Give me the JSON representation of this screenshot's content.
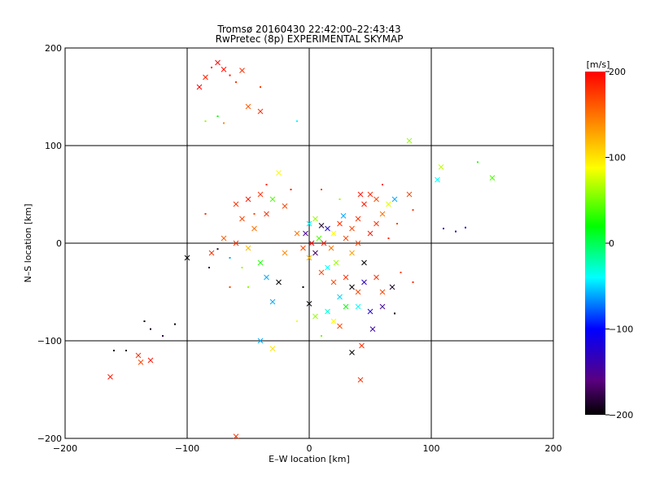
{
  "chart_data": {
    "type": "scatter",
    "title": "Tromsø 20160430 22:42:00–22:43:43",
    "subtitle": "RwPretec (8p) EXPERIMENTAL SKYMAP",
    "xlabel": "E–W location [km]",
    "ylabel": "N–S location [km]",
    "xlim": [
      -200,
      200
    ],
    "ylim": [
      -200,
      200
    ],
    "xticks": [
      "−200",
      "−100",
      "0",
      "100",
      "200"
    ],
    "yticks": [
      "−200",
      "−100",
      "0",
      "100",
      "200"
    ],
    "grid": true,
    "colorbar": {
      "label": "[m/s]",
      "range": [
        -200,
        200
      ],
      "ticks": [
        "200",
        "100",
        "0",
        "−100",
        "−200"
      ],
      "colormap": "black-purple-blue-cyan-green-yellow-red"
    },
    "marker_styles": [
      "x",
      "dot"
    ],
    "series": [
      {
        "x": -75,
        "y": 185,
        "v": 200,
        "m": "x"
      },
      {
        "x": -80,
        "y": 180,
        "v": 190,
        "m": "dot"
      },
      {
        "x": -70,
        "y": 178,
        "v": 195,
        "m": "x"
      },
      {
        "x": -55,
        "y": 177,
        "v": 180,
        "m": "x"
      },
      {
        "x": -65,
        "y": 172,
        "v": 190,
        "m": "dot"
      },
      {
        "x": -85,
        "y": 170,
        "v": 185,
        "m": "x"
      },
      {
        "x": -60,
        "y": 165,
        "v": 175,
        "m": "dot"
      },
      {
        "x": -40,
        "y": 160,
        "v": 170,
        "m": "dot"
      },
      {
        "x": -90,
        "y": 160,
        "v": 200,
        "m": "x"
      },
      {
        "x": -50,
        "y": 140,
        "v": 160,
        "m": "x"
      },
      {
        "x": -40,
        "y": 135,
        "v": 180,
        "m": "x"
      },
      {
        "x": -75,
        "y": 130,
        "v": 20,
        "m": "dot"
      },
      {
        "x": -85,
        "y": 125,
        "v": 60,
        "m": "dot"
      },
      {
        "x": -70,
        "y": 123,
        "v": 140,
        "m": "dot"
      },
      {
        "x": -10,
        "y": 125,
        "v": -40,
        "m": "dot"
      },
      {
        "x": 82,
        "y": 105,
        "v": 60,
        "m": "x"
      },
      {
        "x": 108,
        "y": 78,
        "v": 70,
        "m": "x"
      },
      {
        "x": 105,
        "y": 65,
        "v": -40,
        "m": "x"
      },
      {
        "x": 150,
        "y": 67,
        "v": 40,
        "m": "x"
      },
      {
        "x": 138,
        "y": 83,
        "v": 30,
        "m": "dot"
      },
      {
        "x": 110,
        "y": 15,
        "v": -150,
        "m": "dot"
      },
      {
        "x": 120,
        "y": 12,
        "v": -130,
        "m": "dot"
      },
      {
        "x": 128,
        "y": 16,
        "v": -120,
        "m": "dot"
      },
      {
        "x": 82,
        "y": 50,
        "v": 170,
        "m": "x"
      },
      {
        "x": 85,
        "y": 34,
        "v": 180,
        "m": "dot"
      },
      {
        "x": -100,
        "y": -15,
        "v": -200,
        "m": "x"
      },
      {
        "x": -80,
        "y": -10,
        "v": 180,
        "m": "x"
      },
      {
        "x": -75,
        "y": -6,
        "v": -190,
        "m": "dot"
      },
      {
        "x": -70,
        "y": 5,
        "v": 160,
        "m": "x"
      },
      {
        "x": -82,
        "y": -25,
        "v": -180,
        "m": "dot"
      },
      {
        "x": -60,
        "y": 40,
        "v": 180,
        "m": "x"
      },
      {
        "x": -50,
        "y": 45,
        "v": 190,
        "m": "x"
      },
      {
        "x": -40,
        "y": 50,
        "v": 175,
        "m": "x"
      },
      {
        "x": -30,
        "y": 45,
        "v": 40,
        "m": "x"
      },
      {
        "x": -25,
        "y": 72,
        "v": 90,
        "m": "x"
      },
      {
        "x": -20,
        "y": 38,
        "v": 170,
        "m": "x"
      },
      {
        "x": -35,
        "y": 30,
        "v": 180,
        "m": "x"
      },
      {
        "x": -55,
        "y": 25,
        "v": 170,
        "m": "x"
      },
      {
        "x": -45,
        "y": 15,
        "v": 150,
        "m": "x"
      },
      {
        "x": -60,
        "y": 0,
        "v": 180,
        "m": "x"
      },
      {
        "x": -50,
        "y": -5,
        "v": 120,
        "m": "x"
      },
      {
        "x": -40,
        "y": -20,
        "v": 30,
        "m": "x"
      },
      {
        "x": -35,
        "y": -35,
        "v": -60,
        "m": "x"
      },
      {
        "x": -50,
        "y": -45,
        "v": 60,
        "m": "dot"
      },
      {
        "x": -30,
        "y": -60,
        "v": -60,
        "m": "x"
      },
      {
        "x": -25,
        "y": -40,
        "v": -200,
        "m": "x"
      },
      {
        "x": -20,
        "y": -10,
        "v": 140,
        "m": "x"
      },
      {
        "x": -10,
        "y": 10,
        "v": 150,
        "m": "x"
      },
      {
        "x": -5,
        "y": -5,
        "v": 170,
        "m": "x"
      },
      {
        "x": 0,
        "y": 20,
        "v": -40,
        "m": "x"
      },
      {
        "x": 5,
        "y": 25,
        "v": 60,
        "m": "x"
      },
      {
        "x": 10,
        "y": 18,
        "v": -190,
        "m": "x"
      },
      {
        "x": 15,
        "y": 15,
        "v": -120,
        "m": "x"
      },
      {
        "x": 8,
        "y": 5,
        "v": 40,
        "m": "x"
      },
      {
        "x": 12,
        "y": 0,
        "v": 190,
        "m": "x"
      },
      {
        "x": 18,
        "y": -5,
        "v": 150,
        "m": "x"
      },
      {
        "x": 5,
        "y": -10,
        "v": -170,
        "m": "x"
      },
      {
        "x": 20,
        "y": 10,
        "v": 90,
        "m": "x"
      },
      {
        "x": 25,
        "y": 20,
        "v": 180,
        "m": "x"
      },
      {
        "x": 30,
        "y": 5,
        "v": 170,
        "m": "x"
      },
      {
        "x": 22,
        "y": -20,
        "v": 60,
        "m": "x"
      },
      {
        "x": 15,
        "y": -25,
        "v": -40,
        "m": "x"
      },
      {
        "x": 10,
        "y": -30,
        "v": 170,
        "m": "x"
      },
      {
        "x": 0,
        "y": -15,
        "v": 120,
        "m": "x"
      },
      {
        "x": 2,
        "y": 0,
        "v": 200,
        "m": "x"
      },
      {
        "x": -3,
        "y": 10,
        "v": -150,
        "m": "x"
      },
      {
        "x": 28,
        "y": 28,
        "v": -60,
        "m": "x"
      },
      {
        "x": 35,
        "y": 15,
        "v": 170,
        "m": "x"
      },
      {
        "x": 40,
        "y": 25,
        "v": 180,
        "m": "x"
      },
      {
        "x": 45,
        "y": 40,
        "v": 190,
        "m": "x"
      },
      {
        "x": 50,
        "y": 50,
        "v": 180,
        "m": "x"
      },
      {
        "x": 55,
        "y": 45,
        "v": 170,
        "m": "x"
      },
      {
        "x": 42,
        "y": 50,
        "v": 190,
        "m": "x"
      },
      {
        "x": 60,
        "y": 30,
        "v": 150,
        "m": "x"
      },
      {
        "x": 65,
        "y": 40,
        "v": 80,
        "m": "x"
      },
      {
        "x": 70,
        "y": 45,
        "v": -60,
        "m": "x"
      },
      {
        "x": 55,
        "y": 20,
        "v": 180,
        "m": "x"
      },
      {
        "x": 50,
        "y": 10,
        "v": 190,
        "m": "x"
      },
      {
        "x": 40,
        "y": 0,
        "v": 170,
        "m": "x"
      },
      {
        "x": 35,
        "y": -10,
        "v": 130,
        "m": "x"
      },
      {
        "x": 45,
        "y": -20,
        "v": -200,
        "m": "x"
      },
      {
        "x": 30,
        "y": -35,
        "v": 180,
        "m": "x"
      },
      {
        "x": 20,
        "y": -40,
        "v": 170,
        "m": "x"
      },
      {
        "x": 35,
        "y": -45,
        "v": -200,
        "m": "x"
      },
      {
        "x": 40,
        "y": -50,
        "v": 170,
        "m": "x"
      },
      {
        "x": 45,
        "y": -40,
        "v": -130,
        "m": "x"
      },
      {
        "x": 55,
        "y": -35,
        "v": 180,
        "m": "x"
      },
      {
        "x": 60,
        "y": -50,
        "v": 170,
        "m": "x"
      },
      {
        "x": 68,
        "y": -45,
        "v": -190,
        "m": "x"
      },
      {
        "x": 25,
        "y": -55,
        "v": -50,
        "m": "x"
      },
      {
        "x": 30,
        "y": -65,
        "v": 20,
        "m": "x"
      },
      {
        "x": 40,
        "y": -65,
        "v": -40,
        "m": "x"
      },
      {
        "x": 50,
        "y": -70,
        "v": -120,
        "m": "x"
      },
      {
        "x": 60,
        "y": -65,
        "v": -150,
        "m": "x"
      },
      {
        "x": 70,
        "y": -72,
        "v": -200,
        "m": "dot"
      },
      {
        "x": 20,
        "y": -80,
        "v": 90,
        "m": "x"
      },
      {
        "x": 25,
        "y": -85,
        "v": 170,
        "m": "x"
      },
      {
        "x": 15,
        "y": -70,
        "v": -30,
        "m": "x"
      },
      {
        "x": 5,
        "y": -75,
        "v": 60,
        "m": "x"
      },
      {
        "x": 0,
        "y": -62,
        "v": -200,
        "m": "x"
      },
      {
        "x": 52,
        "y": -88,
        "v": -140,
        "m": "x"
      },
      {
        "x": -30,
        "y": -108,
        "v": 100,
        "m": "x"
      },
      {
        "x": -40,
        "y": -100,
        "v": -60,
        "m": "x"
      },
      {
        "x": 35,
        "y": -112,
        "v": -200,
        "m": "x"
      },
      {
        "x": 43,
        "y": -105,
        "v": 180,
        "m": "x"
      },
      {
        "x": 42,
        "y": -140,
        "v": 180,
        "m": "x"
      },
      {
        "x": -60,
        "y": -198,
        "v": 180,
        "m": "x"
      },
      {
        "x": -135,
        "y": -80,
        "v": -200,
        "m": "dot"
      },
      {
        "x": -130,
        "y": -88,
        "v": -190,
        "m": "dot"
      },
      {
        "x": -120,
        "y": -95,
        "v": -180,
        "m": "dot"
      },
      {
        "x": -110,
        "y": -83,
        "v": -200,
        "m": "dot"
      },
      {
        "x": -160,
        "y": -110,
        "v": -200,
        "m": "dot"
      },
      {
        "x": -140,
        "y": -115,
        "v": 180,
        "m": "x"
      },
      {
        "x": -138,
        "y": -122,
        "v": 170,
        "m": "x"
      },
      {
        "x": -130,
        "y": -120,
        "v": 190,
        "m": "x"
      },
      {
        "x": -163,
        "y": -137,
        "v": 190,
        "m": "x"
      },
      {
        "x": -150,
        "y": -110,
        "v": -190,
        "m": "dot"
      },
      {
        "x": -65,
        "y": -15,
        "v": -60,
        "m": "dot"
      },
      {
        "x": -55,
        "y": -25,
        "v": 60,
        "m": "dot"
      },
      {
        "x": -45,
        "y": 30,
        "v": 170,
        "m": "dot"
      },
      {
        "x": -35,
        "y": 60,
        "v": 180,
        "m": "dot"
      },
      {
        "x": -15,
        "y": 55,
        "v": 190,
        "m": "dot"
      },
      {
        "x": 10,
        "y": 55,
        "v": 170,
        "m": "dot"
      },
      {
        "x": 25,
        "y": 45,
        "v": 60,
        "m": "dot"
      },
      {
        "x": 60,
        "y": 60,
        "v": 180,
        "m": "dot"
      },
      {
        "x": 72,
        "y": 20,
        "v": 170,
        "m": "dot"
      },
      {
        "x": 65,
        "y": 5,
        "v": 180,
        "m": "dot"
      },
      {
        "x": 75,
        "y": -30,
        "v": 170,
        "m": "dot"
      },
      {
        "x": 85,
        "y": -40,
        "v": 180,
        "m": "dot"
      },
      {
        "x": -5,
        "y": -45,
        "v": -200,
        "m": "dot"
      },
      {
        "x": -10,
        "y": -80,
        "v": 90,
        "m": "dot"
      },
      {
        "x": 10,
        "y": -95,
        "v": 50,
        "m": "dot"
      },
      {
        "x": -65,
        "y": -45,
        "v": 170,
        "m": "dot"
      },
      {
        "x": -85,
        "y": 30,
        "v": 180,
        "m": "dot"
      }
    ]
  }
}
